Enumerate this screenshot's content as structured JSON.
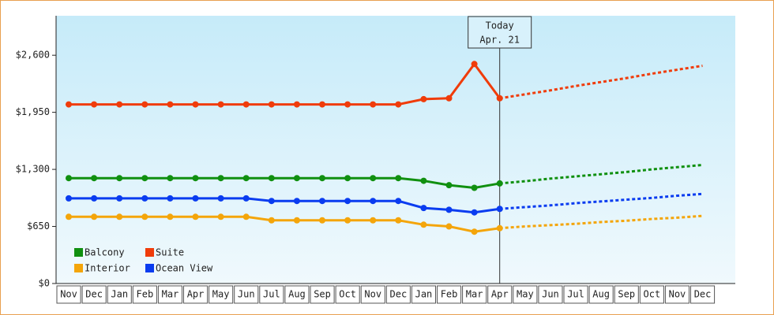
{
  "chart_data": {
    "type": "line",
    "annotation": {
      "title": "Today",
      "date": "Apr. 21",
      "index": 17
    },
    "categories": [
      "Nov",
      "Dec",
      "Jan",
      "Feb",
      "Mar",
      "Apr",
      "May",
      "Jun",
      "Jul",
      "Aug",
      "Sep",
      "Oct",
      "Nov",
      "Dec",
      "Jan",
      "Feb",
      "Mar",
      "Apr",
      "May",
      "Jun",
      "Jul",
      "Aug",
      "Sep",
      "Oct",
      "Nov",
      "Dec"
    ],
    "ylim": [
      0,
      3050
    ],
    "yticks": [
      {
        "value": 0,
        "label": "$0"
      },
      {
        "value": 650,
        "label": "$650"
      },
      {
        "value": 1300,
        "label": "$1,300"
      },
      {
        "value": 1950,
        "label": "$1,950"
      },
      {
        "value": 2600,
        "label": "$2,600"
      }
    ],
    "series": [
      {
        "name": "Balcony",
        "color": "#109010",
        "values": [
          1200,
          1200,
          1200,
          1200,
          1200,
          1200,
          1200,
          1200,
          1200,
          1200,
          1200,
          1200,
          1200,
          1200,
          1170,
          1120,
          1090,
          1140,
          null,
          null,
          null,
          null,
          null,
          null,
          null,
          null
        ],
        "projection": [
          null,
          null,
          null,
          null,
          null,
          null,
          null,
          null,
          null,
          null,
          null,
          null,
          null,
          null,
          null,
          null,
          null,
          1140,
          1165,
          1195,
          1220,
          1245,
          1270,
          1300,
          1325,
          1350
        ]
      },
      {
        "name": "Suite",
        "color": "#f03c0a",
        "values": [
          2040,
          2040,
          2040,
          2040,
          2040,
          2040,
          2040,
          2040,
          2040,
          2040,
          2040,
          2040,
          2040,
          2040,
          2100,
          2110,
          2500,
          2110,
          null,
          null,
          null,
          null,
          null,
          null,
          null,
          null
        ],
        "projection": [
          null,
          null,
          null,
          null,
          null,
          null,
          null,
          null,
          null,
          null,
          null,
          null,
          null,
          null,
          null,
          null,
          null,
          2110,
          2155,
          2200,
          2250,
          2295,
          2340,
          2390,
          2435,
          2480
        ]
      },
      {
        "name": "Interior",
        "color": "#f4a50a",
        "values": [
          760,
          760,
          760,
          760,
          760,
          760,
          760,
          760,
          720,
          720,
          720,
          720,
          720,
          720,
          670,
          650,
          590,
          630,
          null,
          null,
          null,
          null,
          null,
          null,
          null,
          null
        ],
        "projection": [
          null,
          null,
          null,
          null,
          null,
          null,
          null,
          null,
          null,
          null,
          null,
          null,
          null,
          null,
          null,
          null,
          null,
          630,
          650,
          665,
          680,
          700,
          715,
          735,
          750,
          770
        ]
      },
      {
        "name": "Ocean View",
        "color": "#0a3cf0",
        "values": [
          970,
          970,
          970,
          970,
          970,
          970,
          970,
          970,
          940,
          940,
          940,
          940,
          940,
          940,
          860,
          840,
          810,
          850,
          null,
          null,
          null,
          null,
          null,
          null,
          null,
          null
        ],
        "projection": [
          null,
          null,
          null,
          null,
          null,
          null,
          null,
          null,
          null,
          null,
          null,
          null,
          null,
          null,
          null,
          null,
          null,
          850,
          870,
          890,
          915,
          935,
          955,
          975,
          1000,
          1020
        ]
      }
    ]
  }
}
